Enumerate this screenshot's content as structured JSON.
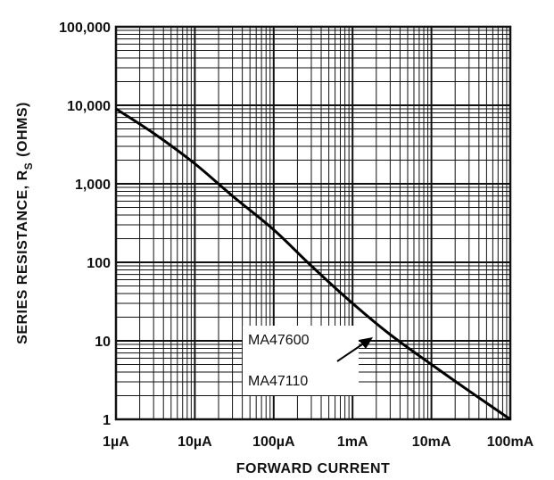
{
  "chart_data": {
    "type": "line",
    "xscale": "log",
    "yscale": "log",
    "xlim": [
      "1µA",
      "100mA"
    ],
    "ylim": [
      1,
      100000
    ],
    "grid": true,
    "xlabel": "FORWARD CURRENT",
    "ylabel_main": "SERIES RESISTANCE, R",
    "ylabel_sub": "S",
    "ylabel_unit": "(OHMS)",
    "x_ticks": [
      "1µA",
      "10µA",
      "100µA",
      "1mA",
      "10mA",
      "100mA"
    ],
    "y_ticks": [
      "1",
      "10",
      "100",
      "1,000",
      "10,000",
      "100,000"
    ],
    "series": [
      {
        "x": [
          "1µA",
          "3µA",
          "10µA",
          "30µA",
          "100µA",
          "300µA",
          "1mA",
          "3mA",
          "10mA",
          "30mA",
          "100mA"
        ],
        "y": [
          9000,
          4400,
          1800,
          700,
          260,
          90,
          30,
          12,
          5,
          2.3,
          1
        ]
      }
    ],
    "annotations": [
      "MA47600",
      "MA47110"
    ]
  }
}
